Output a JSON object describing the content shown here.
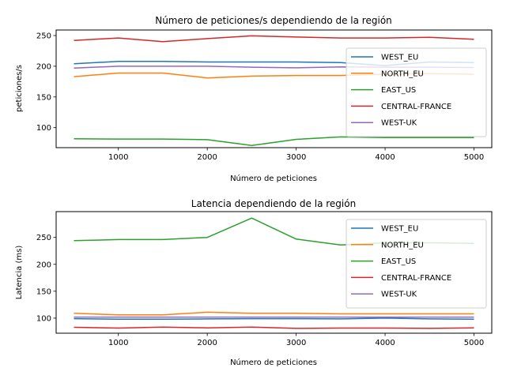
{
  "chart_data": [
    {
      "type": "line",
      "title": "Número de peticiones/s dependiendo de la región",
      "xlabel": "Número de peticiones",
      "ylabel": "peticiones/s",
      "x": [
        500,
        1000,
        1500,
        2000,
        2500,
        3000,
        3500,
        4000,
        4500,
        5000
      ],
      "xlim": [
        300,
        5200
      ],
      "ylim": [
        67.5,
        259
      ],
      "xticks": [
        1000,
        2000,
        3000,
        4000,
        5000
      ],
      "yticks": [
        100,
        150,
        200,
        250
      ],
      "grid": false,
      "legend_position": "right",
      "series": [
        {
          "name": "WEST_EU",
          "color": "#1f77b4",
          "values": [
            204,
            208,
            208,
            207,
            207,
            207,
            206,
            201,
            207,
            206
          ]
        },
        {
          "name": "NORTH_EU",
          "color": "#ff7f0e",
          "values": [
            183,
            189,
            189,
            181,
            184,
            185,
            185,
            187,
            188,
            187
          ]
        },
        {
          "name": "EAST_US",
          "color": "#2ca02c",
          "values": [
            82,
            81.5,
            81.5,
            80.5,
            71,
            81,
            85,
            84,
            84,
            84
          ]
        },
        {
          "name": "CENTRAL-FRANCE",
          "color": "#d62728",
          "values": [
            242,
            246,
            240,
            245,
            249.5,
            247.5,
            246,
            246,
            247,
            244
          ]
        },
        {
          "name": "WEST-UK",
          "color": "#9467bd",
          "values": [
            197,
            200,
            200,
            200,
            198.5,
            197.5,
            199,
            198.5,
            198.5,
            198
          ]
        }
      ]
    },
    {
      "type": "line",
      "title": "Latencia dependiendo de la región",
      "xlabel": "Número de peticiones",
      "ylabel": "Latencia (ms)",
      "x": [
        500,
        1000,
        1500,
        2000,
        2500,
        3000,
        3500,
        4000,
        4500,
        5000
      ],
      "xlim": [
        300,
        5200
      ],
      "ylim": [
        72,
        298
      ],
      "xticks": [
        1000,
        2000,
        3000,
        4000,
        5000
      ],
      "yticks": [
        100,
        150,
        200,
        250
      ],
      "grid": false,
      "legend_position": "right",
      "series": [
        {
          "name": "WEST_EU",
          "color": "#1f77b4",
          "values": [
            99,
            98,
            98,
            98.5,
            99,
            99,
            98.5,
            100,
            98.5,
            98
          ]
        },
        {
          "name": "NORTH_EU",
          "color": "#ff7f0e",
          "values": [
            109,
            106,
            106,
            111,
            109,
            109,
            108,
            108,
            108,
            108
          ]
        },
        {
          "name": "EAST_US",
          "color": "#2ca02c",
          "values": [
            244,
            246,
            246,
            250,
            286,
            247,
            236,
            240,
            240,
            239
          ]
        },
        {
          "name": "CENTRAL-FRANCE",
          "color": "#d62728",
          "values": [
            83,
            81.5,
            83.5,
            82,
            83.5,
            81,
            81.5,
            81.5,
            81,
            82
          ]
        },
        {
          "name": "WEST-UK",
          "color": "#9467bd",
          "values": [
            102,
            102,
            102,
            102,
            102,
            102,
            102,
            102,
            102,
            102
          ]
        }
      ]
    }
  ]
}
